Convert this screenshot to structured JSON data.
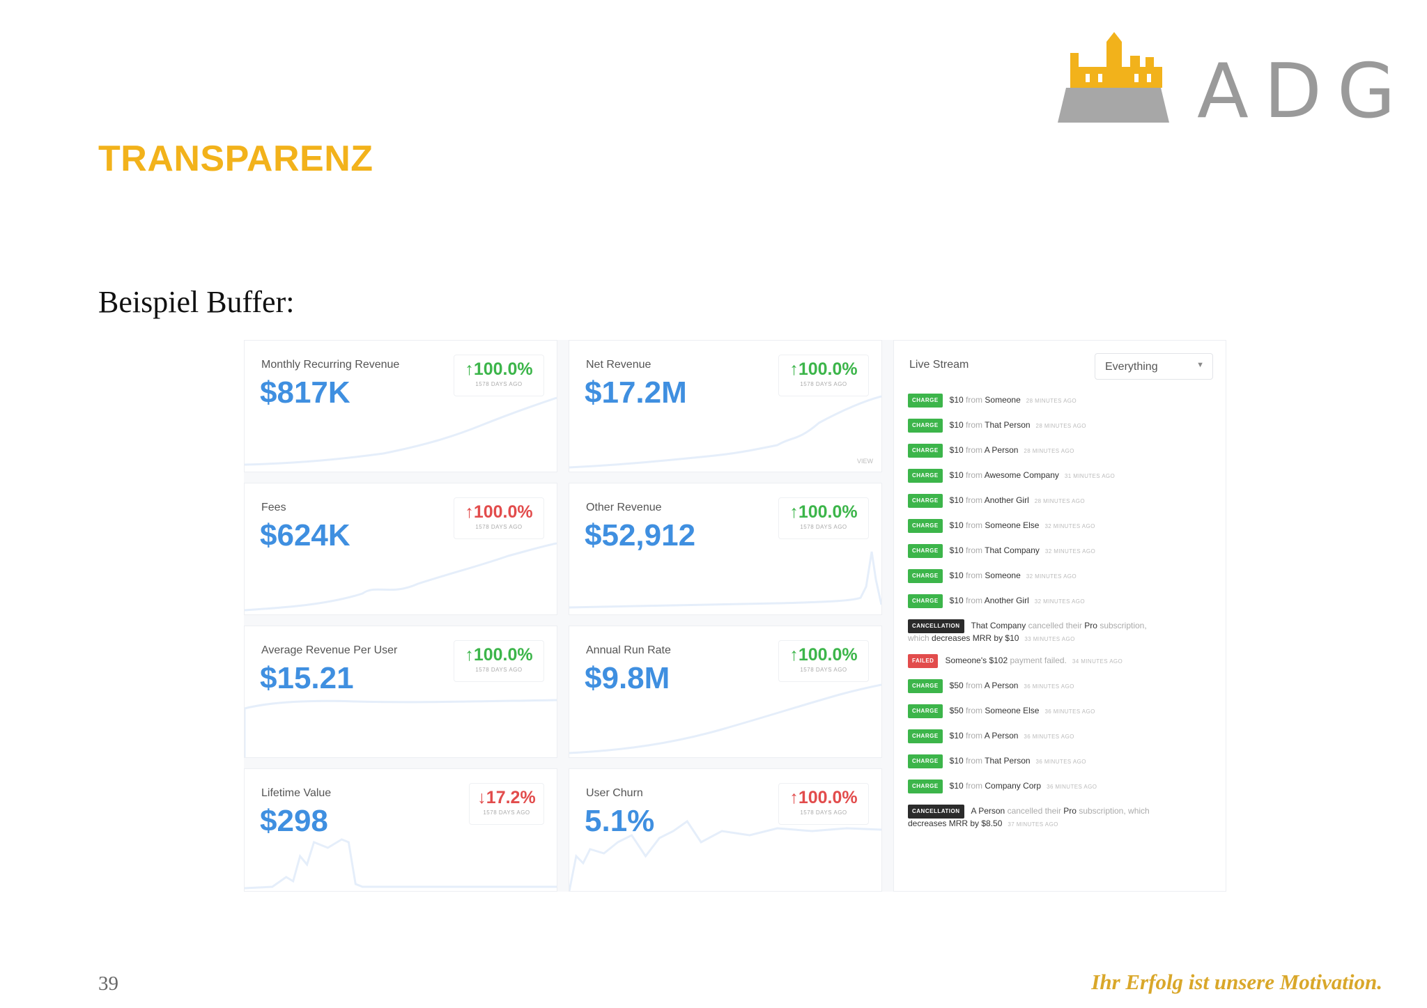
{
  "slide": {
    "title": "TRANSPARENZ",
    "subtitle": "Beispiel Buffer:",
    "page_number": "39",
    "tagline": "Ihr Erfolg ist unsere Motivation.",
    "logo_text": "ADG"
  },
  "colors": {
    "title": "#f2b21b",
    "value_blue": "#3f8fe0",
    "up_green": "#3cb54a",
    "down_red": "#e24c4c",
    "cancellation_badge": "#2b2b2b"
  },
  "metrics": [
    {
      "label": "Monthly Recurring Revenue",
      "value": "$817K",
      "change": "↑100.0%",
      "direction": "up",
      "note": "1578 DAYS AGO"
    },
    {
      "label": "Net Revenue",
      "value": "$17.2M",
      "change": "↑100.0%",
      "direction": "up",
      "note": "1578 DAYS AGO",
      "link": "VIEW"
    },
    {
      "label": "Fees",
      "value": "$624K",
      "change": "↑100.0%",
      "direction": "down",
      "note": "1578 DAYS AGO"
    },
    {
      "label": "Other Revenue",
      "value": "$52,912",
      "change": "↑100.0%",
      "direction": "up",
      "note": "1578 DAYS AGO"
    },
    {
      "label": "Average Revenue Per User",
      "value": "$15.21",
      "change": "↑100.0%",
      "direction": "up",
      "note": "1578 DAYS AGO"
    },
    {
      "label": "Annual Run Rate",
      "value": "$9.8M",
      "change": "↑100.0%",
      "direction": "up",
      "note": "1578 DAYS AGO"
    },
    {
      "label": "Lifetime Value",
      "value": "$298",
      "change": "↓17.2%",
      "direction": "down",
      "note": "1578 DAYS AGO"
    },
    {
      "label": "User Churn",
      "value": "5.1%",
      "change": "↑100.0%",
      "direction": "down",
      "note": "1578 DAYS AGO"
    }
  ],
  "live_stream": {
    "title": "Live Stream",
    "filter": "Everything",
    "events": [
      {
        "badge": "CHARGE",
        "type": "charge",
        "amount": "$10",
        "from": "from",
        "who": "Someone",
        "time": "28 MINUTES AGO"
      },
      {
        "badge": "CHARGE",
        "type": "charge",
        "amount": "$10",
        "from": "from",
        "who": "That Person",
        "time": "28 MINUTES AGO"
      },
      {
        "badge": "CHARGE",
        "type": "charge",
        "amount": "$10",
        "from": "from",
        "who": "A Person",
        "time": "28 MINUTES AGO"
      },
      {
        "badge": "CHARGE",
        "type": "charge",
        "amount": "$10",
        "from": "from",
        "who": "Awesome Company",
        "time": "31 MINUTES AGO"
      },
      {
        "badge": "CHARGE",
        "type": "charge",
        "amount": "$10",
        "from": "from",
        "who": "Another Girl",
        "time": "28 MINUTES AGO"
      },
      {
        "badge": "CHARGE",
        "type": "charge",
        "amount": "$10",
        "from": "from",
        "who": "Someone Else",
        "time": "32 MINUTES AGO"
      },
      {
        "badge": "CHARGE",
        "type": "charge",
        "amount": "$10",
        "from": "from",
        "who": "That Company",
        "time": "32 MINUTES AGO"
      },
      {
        "badge": "CHARGE",
        "type": "charge",
        "amount": "$10",
        "from": "from",
        "who": "Someone",
        "time": "32 MINUTES AGO"
      },
      {
        "badge": "CHARGE",
        "type": "charge",
        "amount": "$10",
        "from": "from",
        "who": "Another Girl",
        "time": "32 MINUTES AGO"
      }
    ],
    "cancellation_1": {
      "badge": "CANCELLATION",
      "who": "That Company",
      "mid": "cancelled their",
      "plan": "Pro",
      "tail": "subscription,",
      "line2": "which",
      "effect": "decreases MRR by $10",
      "time": "33 MINUTES AGO"
    },
    "failed": {
      "badge": "FAILED",
      "who": "Someone's $102",
      "text": "payment failed.",
      "time": "34 MINUTES AGO"
    },
    "events_2": [
      {
        "badge": "CHARGE",
        "type": "charge",
        "amount": "$50",
        "from": "from",
        "who": "A Person",
        "time": "36 MINUTES AGO"
      },
      {
        "badge": "CHARGE",
        "type": "charge",
        "amount": "$50",
        "from": "from",
        "who": "Someone Else",
        "time": "36 MINUTES AGO"
      },
      {
        "badge": "CHARGE",
        "type": "charge",
        "amount": "$10",
        "from": "from",
        "who": "A Person",
        "time": "36 MINUTES AGO"
      },
      {
        "badge": "CHARGE",
        "type": "charge",
        "amount": "$10",
        "from": "from",
        "who": "That Person",
        "time": "36 MINUTES AGO"
      },
      {
        "badge": "CHARGE",
        "type": "charge",
        "amount": "$10",
        "from": "from",
        "who": "Company Corp",
        "time": "36 MINUTES AGO"
      }
    ],
    "cancellation_2": {
      "badge": "CANCELLATION",
      "who": "A Person",
      "mid": "cancelled their",
      "plan": "Pro",
      "tail": "subscription, which",
      "effect": "decreases MRR by $8.50",
      "time": "37 MINUTES AGO"
    }
  }
}
